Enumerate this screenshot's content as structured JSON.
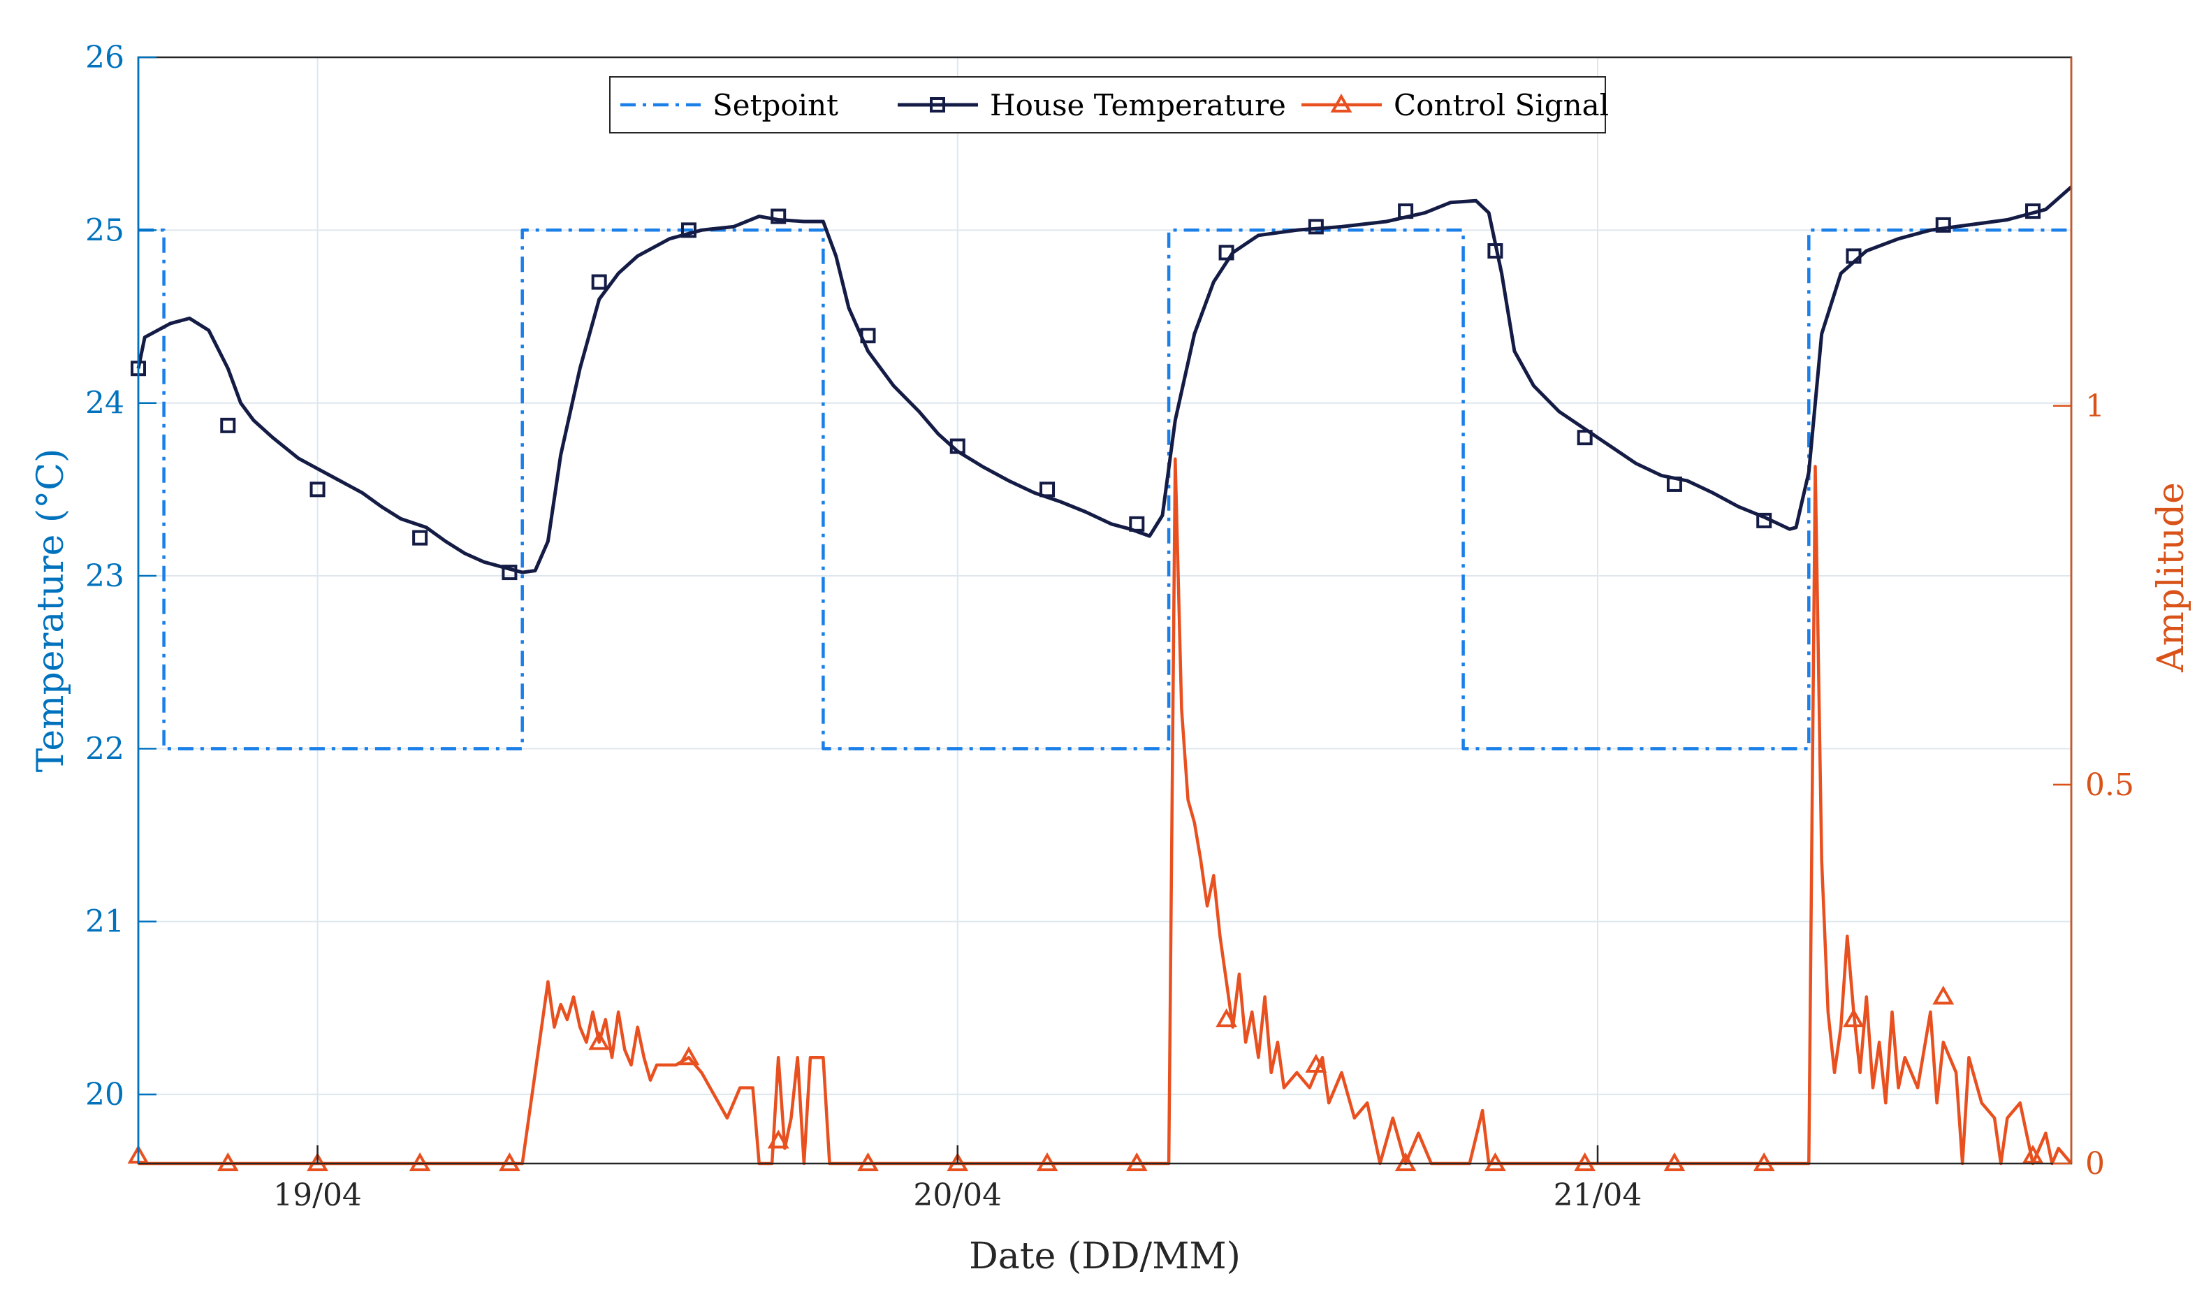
{
  "chart_data": {
    "type": "line",
    "xlabel": "Date (DD/MM)",
    "ylabel_left": "Temperature (°C)",
    "ylabel_right": "Amplitude",
    "x_unit": "days since 18/04 00:00",
    "xlim": [
      0.72,
      3.74
    ],
    "ylim_left": [
      19.6,
      26
    ],
    "ylim_right": [
      0,
      1.46
    ],
    "xticks": [
      {
        "x": 1,
        "label": "19/04"
      },
      {
        "x": 2,
        "label": "20/04"
      },
      {
        "x": 3,
        "label": "21/04"
      }
    ],
    "yticks_left": [
      {
        "v": 20,
        "label": "20"
      },
      {
        "v": 21,
        "label": "21"
      },
      {
        "v": 22,
        "label": "22"
      },
      {
        "v": 23,
        "label": "23"
      },
      {
        "v": 24,
        "label": "24"
      },
      {
        "v": 25,
        "label": "25"
      },
      {
        "v": 26,
        "label": "26"
      }
    ],
    "yticks_right": [
      {
        "v": 0,
        "label": "0"
      },
      {
        "v": 0.5,
        "label": "0.5"
      },
      {
        "v": 1,
        "label": "1"
      }
    ],
    "grid": true,
    "legend_position": "top-center",
    "series": [
      {
        "name": "Setpoint",
        "axis": "left",
        "style": "dash-dot",
        "color": "#1a7fe8",
        "points": [
          [
            0.72,
            25
          ],
          [
            0.76,
            25
          ],
          [
            0.76,
            22
          ],
          [
            1.32,
            22
          ],
          [
            1.32,
            25
          ],
          [
            1.79,
            25
          ],
          [
            1.79,
            22
          ],
          [
            2.33,
            22
          ],
          [
            2.33,
            25
          ],
          [
            2.79,
            25
          ],
          [
            2.79,
            22
          ],
          [
            3.33,
            22
          ],
          [
            3.33,
            25
          ],
          [
            3.74,
            25
          ]
        ]
      },
      {
        "name": "House Temperature",
        "axis": "left",
        "style": "solid-square-markers",
        "color": "#141c45",
        "points": [
          [
            0.72,
            24.2
          ],
          [
            0.73,
            24.38
          ],
          [
            0.75,
            24.42
          ],
          [
            0.77,
            24.46
          ],
          [
            0.8,
            24.49
          ],
          [
            0.83,
            24.42
          ],
          [
            0.86,
            24.2
          ],
          [
            0.88,
            24.0
          ],
          [
            0.9,
            23.9
          ],
          [
            0.93,
            23.8
          ],
          [
            0.97,
            23.68
          ],
          [
            1.0,
            23.62
          ],
          [
            1.03,
            23.56
          ],
          [
            1.07,
            23.48
          ],
          [
            1.1,
            23.4
          ],
          [
            1.13,
            23.33
          ],
          [
            1.17,
            23.28
          ],
          [
            1.2,
            23.2
          ],
          [
            1.23,
            23.13
          ],
          [
            1.26,
            23.08
          ],
          [
            1.29,
            23.05
          ],
          [
            1.32,
            23.02
          ],
          [
            1.34,
            23.03
          ],
          [
            1.36,
            23.2
          ],
          [
            1.38,
            23.7
          ],
          [
            1.41,
            24.2
          ],
          [
            1.44,
            24.6
          ],
          [
            1.47,
            24.75
          ],
          [
            1.5,
            24.85
          ],
          [
            1.55,
            24.95
          ],
          [
            1.6,
            25.0
          ],
          [
            1.65,
            25.02
          ],
          [
            1.69,
            25.08
          ],
          [
            1.72,
            25.06
          ],
          [
            1.76,
            25.05
          ],
          [
            1.79,
            25.05
          ],
          [
            1.81,
            24.85
          ],
          [
            1.83,
            24.55
          ],
          [
            1.86,
            24.3
          ],
          [
            1.9,
            24.1
          ],
          [
            1.94,
            23.95
          ],
          [
            1.97,
            23.82
          ],
          [
            2.0,
            23.72
          ],
          [
            2.04,
            23.63
          ],
          [
            2.08,
            23.55
          ],
          [
            2.12,
            23.48
          ],
          [
            2.16,
            23.43
          ],
          [
            2.2,
            23.37
          ],
          [
            2.24,
            23.3
          ],
          [
            2.27,
            23.27
          ],
          [
            2.3,
            23.23
          ],
          [
            2.32,
            23.35
          ],
          [
            2.34,
            23.9
          ],
          [
            2.37,
            24.4
          ],
          [
            2.4,
            24.7
          ],
          [
            2.43,
            24.87
          ],
          [
            2.47,
            24.97
          ],
          [
            2.53,
            25.0
          ],
          [
            2.6,
            25.02
          ],
          [
            2.67,
            25.05
          ],
          [
            2.73,
            25.1
          ],
          [
            2.77,
            25.16
          ],
          [
            2.81,
            25.17
          ],
          [
            2.83,
            25.1
          ],
          [
            2.85,
            24.75
          ],
          [
            2.87,
            24.3
          ],
          [
            2.9,
            24.1
          ],
          [
            2.94,
            23.95
          ],
          [
            2.98,
            23.85
          ],
          [
            3.02,
            23.75
          ],
          [
            3.06,
            23.65
          ],
          [
            3.1,
            23.58
          ],
          [
            3.14,
            23.55
          ],
          [
            3.18,
            23.48
          ],
          [
            3.22,
            23.4
          ],
          [
            3.26,
            23.34
          ],
          [
            3.3,
            23.27
          ],
          [
            3.31,
            23.28
          ],
          [
            3.33,
            23.6
          ],
          [
            3.35,
            24.4
          ],
          [
            3.38,
            24.75
          ],
          [
            3.42,
            24.88
          ],
          [
            3.47,
            24.95
          ],
          [
            3.52,
            25.0
          ],
          [
            3.58,
            25.03
          ],
          [
            3.64,
            25.06
          ],
          [
            3.7,
            25.12
          ],
          [
            3.74,
            25.25
          ]
        ],
        "markers": [
          [
            0.72,
            24.2
          ],
          [
            0.86,
            23.87
          ],
          [
            1.0,
            23.5
          ],
          [
            1.16,
            23.22
          ],
          [
            1.3,
            23.02
          ],
          [
            1.44,
            24.7
          ],
          [
            1.58,
            25.0
          ],
          [
            1.72,
            25.08
          ],
          [
            1.86,
            24.39
          ],
          [
            2.0,
            23.75
          ],
          [
            2.14,
            23.5
          ],
          [
            2.28,
            23.3
          ],
          [
            2.42,
            24.87
          ],
          [
            2.56,
            25.02
          ],
          [
            2.7,
            25.11
          ],
          [
            2.84,
            24.88
          ],
          [
            2.98,
            23.8
          ],
          [
            3.12,
            23.53
          ],
          [
            3.26,
            23.32
          ],
          [
            3.4,
            24.85
          ],
          [
            3.54,
            25.03
          ],
          [
            3.68,
            25.11
          ]
        ]
      },
      {
        "name": "Control Signal",
        "axis": "right",
        "style": "solid-triangle-markers",
        "color": "#e8501f",
        "points": [
          [
            0.72,
            0
          ],
          [
            1.32,
            0
          ],
          [
            1.34,
            0.12
          ],
          [
            1.36,
            0.24
          ],
          [
            1.37,
            0.18
          ],
          [
            1.38,
            0.21
          ],
          [
            1.39,
            0.19
          ],
          [
            1.4,
            0.22
          ],
          [
            1.41,
            0.18
          ],
          [
            1.42,
            0.16
          ],
          [
            1.43,
            0.2
          ],
          [
            1.44,
            0.16
          ],
          [
            1.45,
            0.19
          ],
          [
            1.46,
            0.14
          ],
          [
            1.47,
            0.2
          ],
          [
            1.48,
            0.15
          ],
          [
            1.49,
            0.13
          ],
          [
            1.5,
            0.18
          ],
          [
            1.51,
            0.14
          ],
          [
            1.52,
            0.11
          ],
          [
            1.53,
            0.13
          ],
          [
            1.56,
            0.13
          ],
          [
            1.58,
            0.14
          ],
          [
            1.6,
            0.12
          ],
          [
            1.62,
            0.09
          ],
          [
            1.64,
            0.06
          ],
          [
            1.66,
            0.1
          ],
          [
            1.68,
            0.1
          ],
          [
            1.69,
            0.0
          ],
          [
            1.71,
            0.0
          ],
          [
            1.72,
            0.14
          ],
          [
            1.73,
            0.02
          ],
          [
            1.74,
            0.06
          ],
          [
            1.75,
            0.14
          ],
          [
            1.76,
            0.0
          ],
          [
            1.77,
            0.14
          ],
          [
            1.79,
            0.14
          ],
          [
            1.8,
            0.0
          ],
          [
            2.33,
            0
          ],
          [
            2.34,
            0.93
          ],
          [
            2.35,
            0.6
          ],
          [
            2.36,
            0.48
          ],
          [
            2.37,
            0.45
          ],
          [
            2.38,
            0.4
          ],
          [
            2.39,
            0.34
          ],
          [
            2.4,
            0.38
          ],
          [
            2.41,
            0.3
          ],
          [
            2.42,
            0.24
          ],
          [
            2.43,
            0.18
          ],
          [
            2.44,
            0.25
          ],
          [
            2.45,
            0.16
          ],
          [
            2.46,
            0.2
          ],
          [
            2.47,
            0.14
          ],
          [
            2.48,
            0.22
          ],
          [
            2.49,
            0.12
          ],
          [
            2.5,
            0.16
          ],
          [
            2.51,
            0.1
          ],
          [
            2.53,
            0.12
          ],
          [
            2.55,
            0.1
          ],
          [
            2.57,
            0.14
          ],
          [
            2.58,
            0.08
          ],
          [
            2.6,
            0.12
          ],
          [
            2.62,
            0.06
          ],
          [
            2.64,
            0.08
          ],
          [
            2.66,
            0.0
          ],
          [
            2.68,
            0.06
          ],
          [
            2.7,
            0.0
          ],
          [
            2.72,
            0.04
          ],
          [
            2.74,
            0.0
          ],
          [
            2.8,
            0.0
          ],
          [
            2.82,
            0.07
          ],
          [
            2.83,
            0.0
          ],
          [
            3.33,
            0
          ],
          [
            3.34,
            0.92
          ],
          [
            3.35,
            0.4
          ],
          [
            3.36,
            0.2
          ],
          [
            3.37,
            0.12
          ],
          [
            3.38,
            0.18
          ],
          [
            3.39,
            0.3
          ],
          [
            3.4,
            0.2
          ],
          [
            3.41,
            0.12
          ],
          [
            3.42,
            0.22
          ],
          [
            3.43,
            0.1
          ],
          [
            3.44,
            0.16
          ],
          [
            3.45,
            0.08
          ],
          [
            3.46,
            0.2
          ],
          [
            3.47,
            0.1
          ],
          [
            3.48,
            0.14
          ],
          [
            3.5,
            0.1
          ],
          [
            3.52,
            0.2
          ],
          [
            3.53,
            0.08
          ],
          [
            3.54,
            0.16
          ],
          [
            3.56,
            0.12
          ],
          [
            3.57,
            0.0
          ],
          [
            3.58,
            0.14
          ],
          [
            3.6,
            0.08
          ],
          [
            3.62,
            0.06
          ],
          [
            3.63,
            0.0
          ],
          [
            3.64,
            0.06
          ],
          [
            3.66,
            0.08
          ],
          [
            3.68,
            0.0
          ],
          [
            3.7,
            0.04
          ],
          [
            3.71,
            0.0
          ],
          [
            3.72,
            0.02
          ],
          [
            3.74,
            0.0
          ]
        ],
        "markers": [
          [
            0.72,
            0.01
          ],
          [
            0.86,
            0
          ],
          [
            1.0,
            0
          ],
          [
            1.16,
            0
          ],
          [
            1.3,
            0
          ],
          [
            1.44,
            0.16
          ],
          [
            1.58,
            0.14
          ],
          [
            1.72,
            0.03
          ],
          [
            1.86,
            0
          ],
          [
            2.0,
            0
          ],
          [
            2.14,
            0
          ],
          [
            2.28,
            0
          ],
          [
            2.42,
            0.19
          ],
          [
            2.56,
            0.13
          ],
          [
            2.7,
            0
          ],
          [
            2.84,
            0
          ],
          [
            2.98,
            0
          ],
          [
            3.12,
            0
          ],
          [
            3.26,
            0
          ],
          [
            3.4,
            0.19
          ],
          [
            3.54,
            0.22
          ],
          [
            3.68,
            0.01
          ]
        ]
      }
    ]
  }
}
